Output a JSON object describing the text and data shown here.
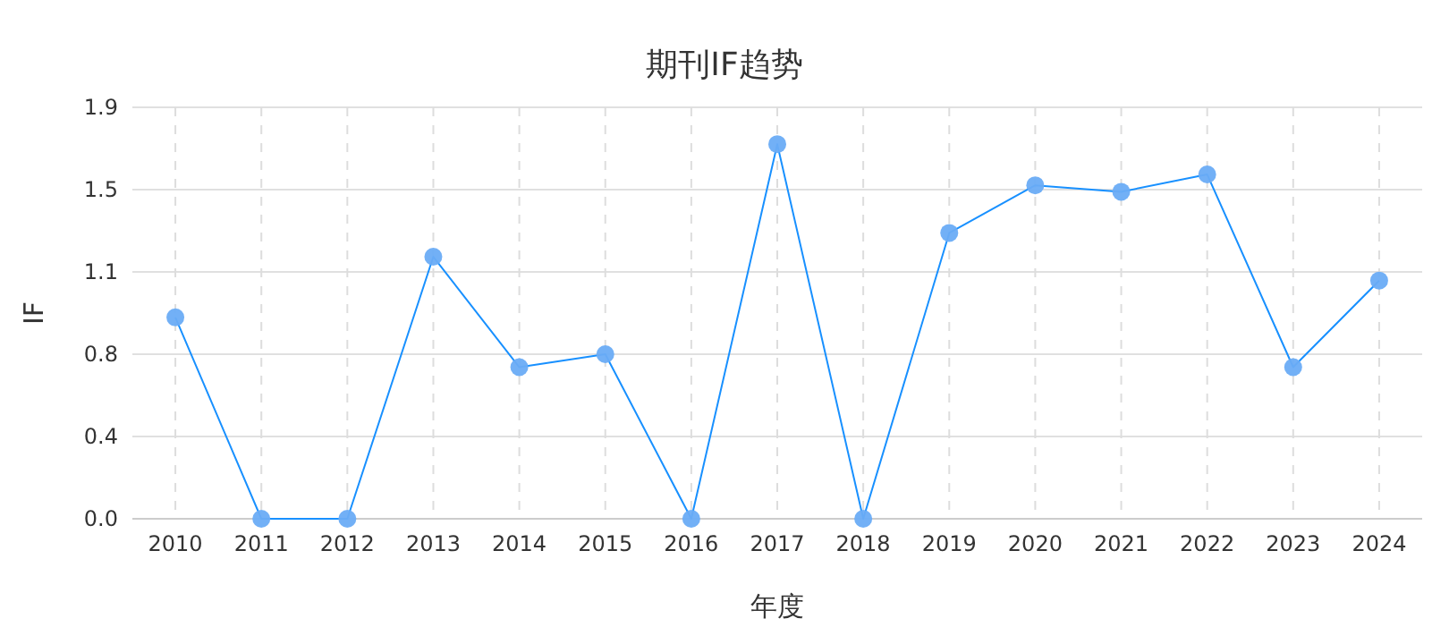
{
  "chart_data": {
    "type": "line",
    "title": "期刊IF趋势",
    "xlabel": "年度",
    "ylabel": "IF",
    "categories": [
      "2010",
      "2011",
      "2012",
      "2013",
      "2014",
      "2015",
      "2016",
      "2017",
      "2018",
      "2019",
      "2020",
      "2021",
      "2022",
      "2023",
      "2024"
    ],
    "series": [
      {
        "color": "#1890ff",
        "values": [
          0.93,
          0,
          0,
          1.21,
          0.7,
          0.76,
          0,
          1.73,
          0,
          1.32,
          1.54,
          1.51,
          1.59,
          0.7,
          1.1
        ]
      }
    ],
    "ylim": [
      0,
      1.9
    ],
    "yticks": [
      {
        "value": 0,
        "label": "0.0"
      },
      {
        "value": 0.38,
        "label": "0.4"
      },
      {
        "value": 0.76,
        "label": "0.8"
      },
      {
        "value": 1.14,
        "label": "1.1"
      },
      {
        "value": 1.52,
        "label": "1.5"
      },
      1.9
    ],
    "grid": true,
    "marker": "circle"
  }
}
